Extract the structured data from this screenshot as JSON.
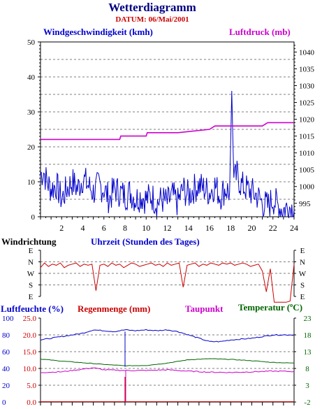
{
  "header": {
    "title": "Wetterdiagramm",
    "date": "DATUM: 06/Mai/2001",
    "title_color": "#000080",
    "date_color": "#cc0000"
  },
  "colors": {
    "wind": "#0000cc",
    "pressure": "#cc00cc",
    "direction": "#cc0000",
    "humidity": "#0000cc",
    "rain": "#cc0000",
    "dewpoint": "#cc00cc",
    "temperature": "#006600",
    "label_blue": "#0000cc",
    "label_black": "#000000"
  },
  "chart_data": [
    {
      "type": "line",
      "xlabel": "Uhrzeit (Stunden des Tages)",
      "x_ticks": [
        "2",
        "4",
        "6",
        "8",
        "10",
        "12",
        "14",
        "16",
        "18",
        "20",
        "22",
        "24"
      ],
      "xlim": [
        0,
        24
      ],
      "grid": true,
      "series": [
        {
          "name": "Windgeschwindigkeit (kmh)",
          "axis": "left",
          "ylim": [
            0,
            50
          ],
          "y_ticks": [
            "0",
            "10",
            "20",
            "30",
            "40",
            "50"
          ],
          "points": [
            [
              0,
              12
            ],
            [
              0.3,
              13
            ],
            [
              0.6,
              10
            ],
            [
              1,
              8
            ],
            [
              1.5,
              9
            ],
            [
              2,
              5
            ],
            [
              2.5,
              8
            ],
            [
              3,
              10
            ],
            [
              3.5,
              8
            ],
            [
              4,
              11
            ],
            [
              4.5,
              9
            ],
            [
              5,
              7
            ],
            [
              5.5,
              9
            ],
            [
              6,
              8
            ],
            [
              6.5,
              5
            ],
            [
              7,
              8
            ],
            [
              7.5,
              7
            ],
            [
              8,
              6
            ],
            [
              8.5,
              7
            ],
            [
              9,
              5
            ],
            [
              9.5,
              6
            ],
            [
              10,
              5
            ],
            [
              10.5,
              6
            ],
            [
              11,
              4
            ],
            [
              11.5,
              5
            ],
            [
              12,
              4
            ],
            [
              12.5,
              6
            ],
            [
              13,
              4
            ],
            [
              13.5,
              8
            ],
            [
              14,
              6
            ],
            [
              14.5,
              8
            ],
            [
              15,
              9
            ],
            [
              15.5,
              8
            ],
            [
              16,
              7
            ],
            [
              16.5,
              9
            ],
            [
              17,
              6
            ],
            [
              17.5,
              8
            ],
            [
              17.9,
              7
            ],
            [
              18.1,
              36
            ],
            [
              18.3,
              10
            ],
            [
              18.6,
              12
            ],
            [
              19,
              9
            ],
            [
              19.5,
              8
            ],
            [
              20,
              7
            ],
            [
              20.5,
              6
            ],
            [
              21,
              4
            ],
            [
              21.5,
              3
            ],
            [
              22,
              5
            ],
            [
              22.5,
              3
            ],
            [
              23,
              2
            ],
            [
              23.5,
              3
            ],
            [
              24,
              2
            ]
          ]
        },
        {
          "name": "Luftdruck (mb)",
          "axis": "right",
          "ylim": [
            991,
            1043
          ],
          "y_ticks": [
            "995",
            "1000",
            "1005",
            "1010",
            "1015",
            "1020",
            "1025",
            "1030",
            "1035",
            "1040"
          ],
          "points": [
            [
              0,
              1014
            ],
            [
              3,
              1014
            ],
            [
              6,
              1014
            ],
            [
              7.5,
              1014
            ],
            [
              7.6,
              1015
            ],
            [
              10,
              1015
            ],
            [
              10.1,
              1016
            ],
            [
              13,
              1016
            ],
            [
              16,
              1017
            ],
            [
              16.5,
              1018
            ],
            [
              18,
              1018
            ],
            [
              21,
              1018
            ],
            [
              21.5,
              1019
            ],
            [
              24,
              1019
            ]
          ]
        }
      ]
    },
    {
      "type": "line",
      "ylabel": "Windrichtung",
      "categories": [
        "E",
        "N",
        "W",
        "S",
        "E"
      ],
      "series": [
        {
          "name": "Windrichtung",
          "level_values": [
            0.5,
            0.1,
            0.4,
            0.2,
            0.3,
            0.1,
            0.5,
            0.3,
            0.2,
            0.1,
            0.4,
            0.2,
            0.3,
            0.2,
            2.5,
            0.3,
            0.2,
            0.4,
            0.1,
            0.3,
            0.2,
            0.5,
            0.3,
            0.1,
            0.2,
            0.4,
            0.3,
            0.2,
            0.1,
            0.3,
            0.2,
            0.4,
            0.1,
            0.3,
            0.2,
            0.1,
            2.2,
            0.3,
            0.2,
            0.1,
            0.4,
            0.2,
            0.3,
            0.1,
            0.2,
            0.3,
            0.1,
            0.2,
            0.1,
            0.3,
            0.2,
            0.1,
            0.2,
            0.4,
            0.3,
            0.2,
            0.8,
            2.6,
            0.6,
            3.5,
            3.5,
            3.5,
            3.5,
            3.4,
            0.2
          ]
        }
      ]
    },
    {
      "type": "line",
      "series": [
        {
          "name": "Luftfeuchte (%)",
          "axis": "left_outer",
          "ylim": [
            0,
            100
          ],
          "y_ticks": [
            "0",
            "20",
            "40",
            "60",
            "80",
            "100"
          ],
          "points": [
            [
              0,
              74
            ],
            [
              1,
              76
            ],
            [
              2,
              78
            ],
            [
              3,
              80
            ],
            [
              4,
              82
            ],
            [
              5,
              86
            ],
            [
              6,
              85
            ],
            [
              7,
              84
            ],
            [
              8,
              86
            ],
            [
              9,
              85
            ],
            [
              10,
              86
            ],
            [
              11,
              85
            ],
            [
              12,
              86
            ],
            [
              13,
              84
            ],
            [
              14,
              80
            ],
            [
              15,
              76
            ],
            [
              16,
              72
            ],
            [
              17,
              72
            ],
            [
              18,
              74
            ],
            [
              19,
              75
            ],
            [
              20,
              76
            ],
            [
              21,
              78
            ],
            [
              22,
              80
            ],
            [
              23,
              80
            ],
            [
              24,
              80
            ]
          ]
        },
        {
          "name": "Regenmenge (mm)",
          "axis": "left_inner",
          "ylim": [
            0,
            25
          ],
          "y_ticks": [
            "0.0",
            "5.0",
            "10.0",
            "15.0",
            "20.0",
            "25.0"
          ],
          "points": [
            [
              0,
              0
            ],
            [
              7.9,
              0
            ],
            [
              8,
              7.5
            ],
            [
              8.1,
              0
            ],
            [
              24,
              0
            ]
          ]
        },
        {
          "name": "Taupunkt",
          "axis": "right",
          "ylim": [
            -2,
            23
          ],
          "y_ticks": [
            "-2",
            "3",
            "8",
            "13",
            "18",
            "23"
          ],
          "points": [
            [
              0,
              6.8
            ],
            [
              2,
              7.0
            ],
            [
              4,
              7.8
            ],
            [
              5,
              8.2
            ],
            [
              6,
              7.6
            ],
            [
              8,
              7.4
            ],
            [
              10,
              7.4
            ],
            [
              12,
              7.6
            ],
            [
              14,
              7.2
            ],
            [
              16,
              6.9
            ],
            [
              18,
              6.8
            ],
            [
              20,
              7.0
            ],
            [
              22,
              7.2
            ],
            [
              24,
              7.1
            ]
          ]
        },
        {
          "name": "Temperatur (°C)",
          "axis": "right",
          "ylim": [
            -2,
            23
          ],
          "y_ticks": [
            "-2",
            "3",
            "8",
            "13",
            "18",
            "23"
          ],
          "points": [
            [
              0,
              10.8
            ],
            [
              2,
              10.2
            ],
            [
              4,
              9.7
            ],
            [
              6,
              9.2
            ],
            [
              8,
              8.8
            ],
            [
              10,
              8.9
            ],
            [
              12,
              9.6
            ],
            [
              14,
              10.6
            ],
            [
              16,
              10.9
            ],
            [
              18,
              10.7
            ],
            [
              20,
              10.3
            ],
            [
              22,
              9.8
            ],
            [
              24,
              9.6
            ]
          ]
        }
      ]
    }
  ],
  "labels": {
    "wind_speed": "Windgeschwindigkeit (kmh)",
    "pressure": "Luftdruck (mb)",
    "direction": "Windrichtung",
    "time_axis": "Uhrzeit (Stunden des Tages)",
    "humidity": "Luftfeuchte (%)",
    "rain": "Regenmenge (mm)",
    "dewpoint": "Taupunkt",
    "temperature": "Temperatur (ºC)"
  }
}
